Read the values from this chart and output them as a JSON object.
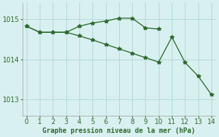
{
  "line1_x": [
    0,
    1,
    2,
    3,
    4,
    5,
    6,
    7,
    8,
    9,
    10
  ],
  "line1_y": [
    1014.82,
    1014.67,
    1014.67,
    1014.67,
    1014.82,
    1014.9,
    1014.95,
    1015.02,
    1015.02,
    1014.78,
    1014.75
  ],
  "line2_x": [
    0,
    1,
    2,
    3,
    4,
    5,
    6,
    7,
    8,
    9,
    10,
    11,
    12,
    13,
    14
  ],
  "line2_y": [
    1014.82,
    1014.67,
    1014.67,
    1014.67,
    1014.58,
    1014.48,
    1014.37,
    1014.26,
    1014.15,
    1014.04,
    1013.93,
    1014.55,
    1013.92,
    1013.58,
    1013.12
  ],
  "line_color": "#2d6a2d",
  "bg_color": "#d9f0f0",
  "grid_color": "#b0d8d8",
  "xlabel": "Graphe pression niveau de la mer (hPa)",
  "ylim": [
    1012.6,
    1015.4
  ],
  "yticks": [
    1013,
    1014,
    1015
  ],
  "xticks": [
    0,
    1,
    2,
    3,
    4,
    5,
    6,
    7,
    8,
    9,
    10,
    11,
    12,
    13,
    14
  ],
  "marker": "*",
  "markersize": 4,
  "linewidth": 1.0
}
